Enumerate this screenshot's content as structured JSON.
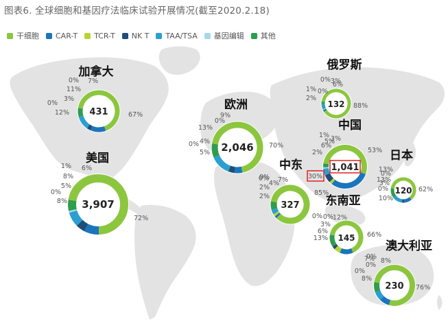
{
  "title": "图表6. 全球细胞和基因疗法临床试验开展情况(截至2020.2.18)",
  "legend": [
    {
      "name": "干细胞",
      "color": "#8cc63f"
    },
    {
      "name": "CAR-T",
      "color": "#1b75bc"
    },
    {
      "name": "TCR-T",
      "color": "#b7d433"
    },
    {
      "name": "NK T",
      "color": "#1f4e79"
    },
    {
      "name": "TAA/TSA",
      "color": "#2b9fd0"
    },
    {
      "name": "基因编辑",
      "color": "#a6d8ee"
    },
    {
      "name": "其他",
      "color": "#2e9d4e"
    }
  ],
  "chart_data": {
    "type": "pie",
    "regions": [
      {
        "id": "canada",
        "name": "加拿大",
        "total": "431",
        "values": [
          67,
          12,
          0,
          3,
          11,
          0,
          7
        ],
        "labels": [
          "67%",
          "12%",
          "0%",
          "3%",
          "11%",
          "0%",
          "7%"
        ]
      },
      {
        "id": "usa",
        "name": "美国",
        "total": "3,907",
        "values": [
          72,
          8,
          0,
          5,
          8,
          1,
          6
        ],
        "labels": [
          "72%",
          "8%",
          "0%",
          "5%",
          "8%",
          "1%",
          "6%"
        ]
      },
      {
        "id": "europe",
        "name": "欧洲",
        "total": "2,046",
        "values": [
          70,
          5,
          0,
          4,
          13,
          0,
          9
        ],
        "labels": [
          "70%",
          "5%",
          "0%",
          "4%",
          "13%",
          "0%",
          "9%"
        ]
      },
      {
        "id": "mideast",
        "name": "中东",
        "total": "327",
        "values": [
          85,
          2,
          2,
          0,
          4,
          0,
          7
        ],
        "labels": [
          "85%",
          "2%",
          "2%",
          "0%",
          "4%",
          "0%",
          "7%"
        ]
      },
      {
        "id": "russia",
        "name": "俄罗斯",
        "total": "132",
        "values": [
          88,
          2,
          1,
          0,
          6,
          0,
          3
        ],
        "labels": [
          "88%",
          "2%",
          "1%",
          "0%",
          "6%",
          "0%",
          "3%"
        ]
      },
      {
        "id": "china",
        "name": "中国",
        "total": "1,041",
        "values": [
          53,
          30,
          2,
          6,
          5,
          1,
          3
        ],
        "labels": [
          "53%",
          "30%",
          "2%",
          "6%",
          "5%",
          "1%",
          "3%"
        ]
      },
      {
        "id": "japan",
        "name": "日本",
        "total": "120",
        "values": [
          62,
          10,
          0,
          3,
          13,
          0,
          13
        ],
        "labels": [
          "62%",
          "10%",
          "0%",
          "3%",
          "13%",
          "0%",
          "13%"
        ]
      },
      {
        "id": "sea",
        "name": "东南亚",
        "total": "145",
        "values": [
          66,
          13,
          6,
          3,
          0,
          0,
          12
        ],
        "labels": [
          "66%",
          "13%",
          "6%",
          "3%",
          "0%",
          "0%",
          "12%"
        ]
      },
      {
        "id": "australia",
        "name": "澳大利亚",
        "total": "230",
        "values": [
          76,
          8,
          0,
          0,
          7,
          0,
          8
        ],
        "labels": [
          "76%",
          "8%",
          "0%",
          "0%",
          "7%",
          "0%",
          "8%"
        ]
      }
    ]
  }
}
